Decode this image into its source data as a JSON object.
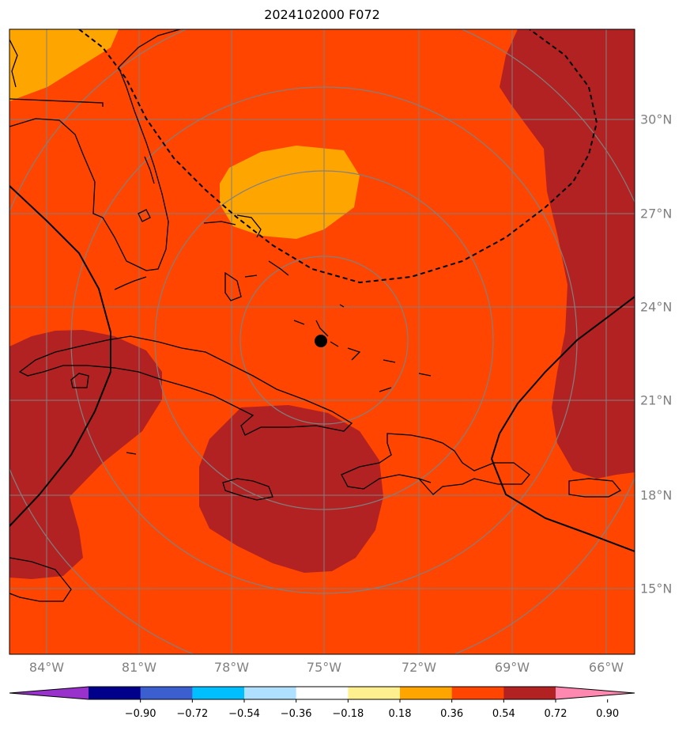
{
  "title": "2024102000 F072",
  "map": {
    "lon_labels": [
      "84°W",
      "81°W",
      "78°W",
      "75°W",
      "72°W",
      "69°W",
      "66°W"
    ],
    "lat_labels": [
      "30°N",
      "27°N",
      "24°N",
      "21°N",
      "18°N",
      "15°N"
    ],
    "center_marker": {
      "lon": -75,
      "lat": 22.9
    },
    "grid_color": "#808080",
    "range_rings_color": "#808080",
    "contour_line_style": "dashed and solid black lines"
  },
  "colorbar": {
    "extend": "both",
    "colors": [
      "#9932cc",
      "#00008b",
      "#3b5fcf",
      "#00bfff",
      "#b0e0ff",
      "#ffffff",
      "#fff08f",
      "#ffa500",
      "#ff4500",
      "#b22222",
      "#ff88b0"
    ],
    "tick_labels": [
      "−0.90",
      "−0.72",
      "−0.54",
      "−0.36",
      "−0.18",
      "0.18",
      "0.36",
      "0.54",
      "0.72",
      "0.90"
    ]
  },
  "field_colors": {
    "base": "#ff4500",
    "high": "#b22222",
    "low": "#ffa500"
  }
}
